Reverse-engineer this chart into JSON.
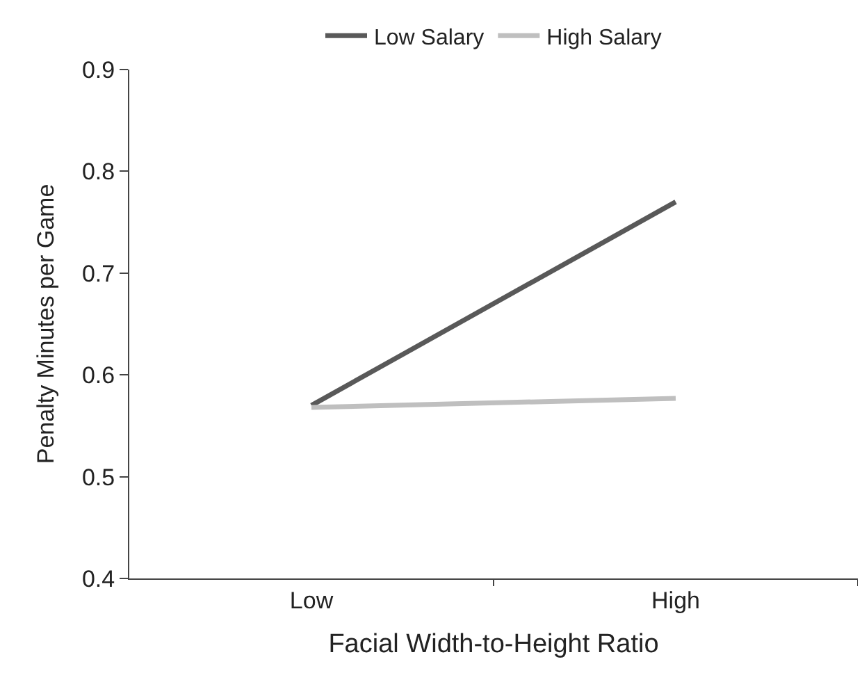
{
  "chart_data": {
    "type": "line",
    "xlabel": "Facial Width-to-Height Ratio",
    "ylabel": "Penalty Minutes per Game",
    "categories": [
      "Low",
      "High"
    ],
    "series": [
      {
        "name": "Low Salary",
        "color": "#595959",
        "values": [
          0.57,
          0.77
        ]
      },
      {
        "name": "High Salary",
        "color": "#bfbfbf",
        "values": [
          0.568,
          0.577
        ]
      }
    ],
    "ylim": [
      0.4,
      0.9
    ],
    "yticks": [
      0.4,
      0.5,
      0.6,
      0.7,
      0.8,
      0.9
    ],
    "legend": "top",
    "marker": "none",
    "line_style": "solid"
  }
}
